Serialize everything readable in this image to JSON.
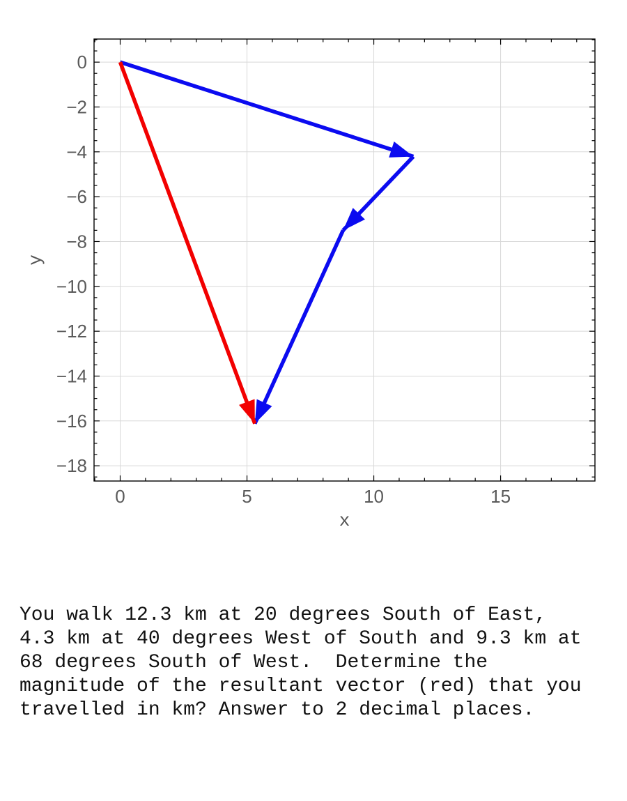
{
  "chart_data": {
    "type": "scatter",
    "subtype": "vector-arrow-plot",
    "title": "",
    "xlabel": "x",
    "ylabel": "y",
    "xlim": [
      -1.03,
      18.72
    ],
    "ylim": [
      -18.68,
      1.03
    ],
    "x_major_ticks": [
      0,
      5,
      10,
      15
    ],
    "x_minor_step": 1,
    "y_major_ticks": [
      0,
      -2,
      -4,
      -6,
      -8,
      -10,
      -12,
      -14,
      -16,
      -18
    ],
    "y_minor_step": 0.5,
    "grid": true,
    "legend": "none",
    "colors": {
      "blue_vector": "#0b0bf0",
      "red_vector": "#f20000",
      "grid_color": "#d8d8d8",
      "frame_color": "#000000",
      "tick_label_color": "#5a5a5a",
      "axis_title_color": "#555555"
    },
    "vectors": [
      {
        "name": "leg-1-12.3km-20deg-S-of-E",
        "series": "walked-path",
        "color": "#0b0bf0",
        "from": [
          0,
          0
        ],
        "to": [
          11.56,
          -4.21
        ]
      },
      {
        "name": "leg-2-4.3km-40deg-W-of-S",
        "series": "walked-path",
        "color": "#0b0bf0",
        "from": [
          11.56,
          -4.21
        ],
        "to": [
          8.79,
          -7.5
        ]
      },
      {
        "name": "leg-3-9.3km-68deg-S-of-W",
        "series": "walked-path",
        "color": "#0b0bf0",
        "from": [
          8.79,
          -7.5
        ],
        "to": [
          5.31,
          -16.12
        ]
      },
      {
        "name": "resultant-vector",
        "series": "resultant",
        "color": "#f20000",
        "from": [
          0,
          0
        ],
        "to": [
          5.31,
          -16.12
        ]
      }
    ]
  },
  "question": {
    "lines": [
      "You walk 12.3 km at 20 degrees South of East,",
      "4.3 km at 40 degrees West of South and 9.3 km at",
      "68 degrees South of West.  Determine the",
      "magnitude of the resultant vector (red) that you",
      "travelled in km? Answer to 2 decimal places."
    ]
  }
}
